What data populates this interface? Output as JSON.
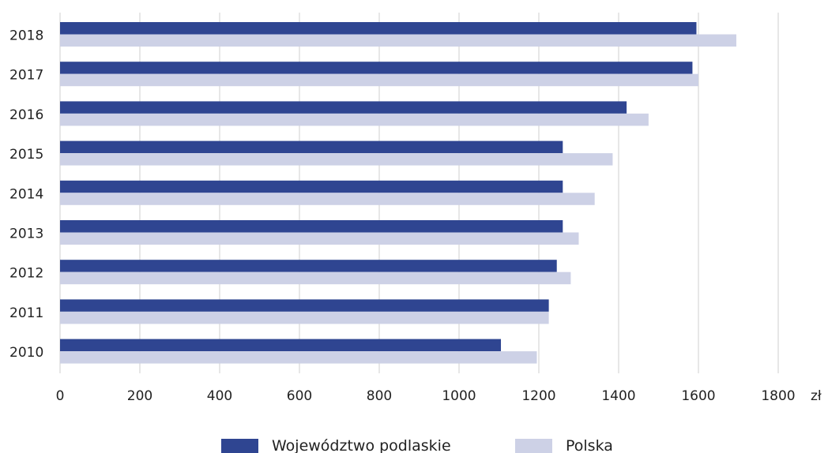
{
  "chart_data": {
    "type": "bar",
    "orientation": "horizontal",
    "categories": [
      "2018",
      "2017",
      "2016",
      "2015",
      "2014",
      "2013",
      "2012",
      "2011",
      "2010"
    ],
    "series": [
      {
        "name": "Województwo podlaskie",
        "color": "#2f4591",
        "values": [
          1595,
          1585,
          1420,
          1260,
          1260,
          1260,
          1245,
          1225,
          1105
        ]
      },
      {
        "name": "Polska",
        "color": "#cdd1e6",
        "values": [
          1695,
          1600,
          1475,
          1385,
          1340,
          1300,
          1280,
          1225,
          1195
        ]
      }
    ],
    "xlim": [
      0,
      1900
    ],
    "xticks": [
      "0",
      "200",
      "400",
      "600",
      "800",
      "1000",
      "1200",
      "1400",
      "1600",
      "1800"
    ],
    "x_unit": "zł",
    "grid": "vertical",
    "legend_placement": "bottom"
  }
}
